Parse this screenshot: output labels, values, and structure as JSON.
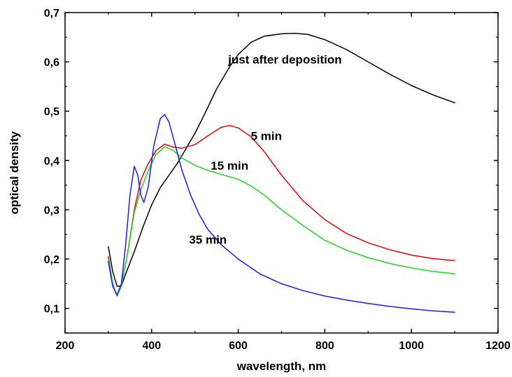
{
  "chart_data": {
    "type": "line",
    "title": "",
    "xlabel": "wavelength, nm",
    "ylabel": "optical density",
    "xlim": [
      200,
      1200
    ],
    "ylim": [
      0.05,
      0.7
    ],
    "xticks": [
      "200",
      "400",
      "600",
      "800",
      "1000",
      "1200"
    ],
    "xtick_values": [
      200,
      400,
      600,
      800,
      1000,
      1200
    ],
    "yticks": [
      "0,1",
      "0,2",
      "0,3",
      "0,4",
      "0,5",
      "0,6",
      "0,7"
    ],
    "ytick_values": [
      0.1,
      0.2,
      0.3,
      0.4,
      0.5,
      0.6,
      0.7
    ],
    "grid": false,
    "series": [
      {
        "name": "just after deposition",
        "color": "#000000",
        "points": [
          [
            300,
            0.225
          ],
          [
            310,
            0.175
          ],
          [
            320,
            0.145
          ],
          [
            330,
            0.145
          ],
          [
            340,
            0.17
          ],
          [
            360,
            0.215
          ],
          [
            380,
            0.265
          ],
          [
            400,
            0.31
          ],
          [
            420,
            0.345
          ],
          [
            440,
            0.37
          ],
          [
            460,
            0.395
          ],
          [
            480,
            0.425
          ],
          [
            500,
            0.455
          ],
          [
            520,
            0.49
          ],
          [
            550,
            0.545
          ],
          [
            580,
            0.59
          ],
          [
            600,
            0.615
          ],
          [
            630,
            0.64
          ],
          [
            660,
            0.652
          ],
          [
            700,
            0.657
          ],
          [
            730,
            0.658
          ],
          [
            760,
            0.656
          ],
          [
            800,
            0.645
          ],
          [
            850,
            0.625
          ],
          [
            900,
            0.6
          ],
          [
            950,
            0.575
          ],
          [
            1000,
            0.552
          ],
          [
            1050,
            0.533
          ],
          [
            1100,
            0.517
          ]
        ]
      },
      {
        "name": "5 min",
        "color": "#e8000b",
        "points": [
          [
            300,
            0.205
          ],
          [
            310,
            0.15
          ],
          [
            320,
            0.125
          ],
          [
            330,
            0.145
          ],
          [
            345,
            0.215
          ],
          [
            360,
            0.3
          ],
          [
            375,
            0.36
          ],
          [
            390,
            0.39
          ],
          [
            410,
            0.42
          ],
          [
            430,
            0.433
          ],
          [
            450,
            0.427
          ],
          [
            470,
            0.425
          ],
          [
            500,
            0.432
          ],
          [
            530,
            0.45
          ],
          [
            560,
            0.467
          ],
          [
            580,
            0.471
          ],
          [
            600,
            0.466
          ],
          [
            630,
            0.448
          ],
          [
            660,
            0.418
          ],
          [
            700,
            0.37
          ],
          [
            750,
            0.318
          ],
          [
            800,
            0.28
          ],
          [
            850,
            0.252
          ],
          [
            900,
            0.233
          ],
          [
            950,
            0.219
          ],
          [
            1000,
            0.208
          ],
          [
            1050,
            0.201
          ],
          [
            1100,
            0.197
          ]
        ]
      },
      {
        "name": "15 min",
        "color": "#1fd61f",
        "points": [
          [
            300,
            0.2
          ],
          [
            310,
            0.15
          ],
          [
            320,
            0.125
          ],
          [
            330,
            0.145
          ],
          [
            345,
            0.215
          ],
          [
            360,
            0.295
          ],
          [
            375,
            0.34
          ],
          [
            390,
            0.375
          ],
          [
            410,
            0.412
          ],
          [
            430,
            0.428
          ],
          [
            450,
            0.42
          ],
          [
            470,
            0.405
          ],
          [
            500,
            0.39
          ],
          [
            530,
            0.38
          ],
          [
            560,
            0.372
          ],
          [
            600,
            0.362
          ],
          [
            630,
            0.348
          ],
          [
            660,
            0.33
          ],
          [
            700,
            0.3
          ],
          [
            750,
            0.268
          ],
          [
            800,
            0.238
          ],
          [
            850,
            0.218
          ],
          [
            900,
            0.203
          ],
          [
            950,
            0.191
          ],
          [
            1000,
            0.182
          ],
          [
            1050,
            0.175
          ],
          [
            1100,
            0.17
          ]
        ]
      },
      {
        "name": "35 min",
        "color": "#1a1aee",
        "points": [
          [
            300,
            0.195
          ],
          [
            310,
            0.145
          ],
          [
            320,
            0.127
          ],
          [
            330,
            0.15
          ],
          [
            340,
            0.23
          ],
          [
            350,
            0.33
          ],
          [
            360,
            0.388
          ],
          [
            368,
            0.37
          ],
          [
            375,
            0.33
          ],
          [
            382,
            0.315
          ],
          [
            392,
            0.345
          ],
          [
            405,
            0.43
          ],
          [
            420,
            0.485
          ],
          [
            430,
            0.493
          ],
          [
            440,
            0.478
          ],
          [
            455,
            0.43
          ],
          [
            470,
            0.38
          ],
          [
            490,
            0.33
          ],
          [
            510,
            0.29
          ],
          [
            530,
            0.26
          ],
          [
            560,
            0.23
          ],
          [
            600,
            0.2
          ],
          [
            650,
            0.17
          ],
          [
            700,
            0.15
          ],
          [
            750,
            0.136
          ],
          [
            800,
            0.125
          ],
          [
            850,
            0.117
          ],
          [
            900,
            0.11
          ],
          [
            950,
            0.104
          ],
          [
            1000,
            0.099
          ],
          [
            1050,
            0.095
          ],
          [
            1100,
            0.092
          ]
        ]
      }
    ],
    "annotations": [
      {
        "text": "just after deposition",
        "x": 708,
        "y": 0.605
      },
      {
        "text": "5 min",
        "x": 665,
        "y": 0.45
      },
      {
        "text": "15 min",
        "x": 580,
        "y": 0.39
      },
      {
        "text": "35 min",
        "x": 530,
        "y": 0.24
      }
    ]
  }
}
